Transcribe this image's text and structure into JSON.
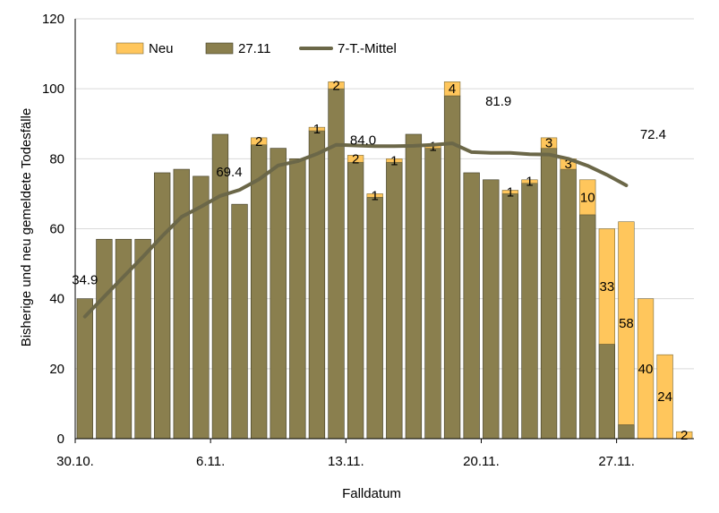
{
  "chart_data": {
    "type": "bar",
    "stacked": true,
    "xlabel": "Falldatum",
    "ylabel": "Bisherige und neu gemeldete Todesfälle",
    "ylim": [
      0,
      120
    ],
    "yticks": [
      0,
      20,
      40,
      60,
      80,
      100,
      120
    ],
    "grid": true,
    "legend": {
      "placement": "top-left",
      "entries": [
        "Neu",
        "27.11",
        "7-T.-Mittel"
      ]
    },
    "x_tick_labels": [
      {
        "label": "30.10.",
        "index": 0
      },
      {
        "label": "6.11.",
        "index": 7
      },
      {
        "label": "13.11.",
        "index": 14
      },
      {
        "label": "20.11.",
        "index": 21
      },
      {
        "label": "27.11.",
        "index": 28
      }
    ],
    "categories": [
      "30.10.",
      "31.10.",
      "1.11.",
      "2.11.",
      "3.11.",
      "4.11.",
      "5.11.",
      "6.11.",
      "7.11.",
      "8.11.",
      "9.11.",
      "10.11.",
      "11.11.",
      "12.11.",
      "13.11.",
      "14.11.",
      "15.11.",
      "16.11.",
      "17.11.",
      "18.11.",
      "19.11.",
      "20.11.",
      "21.11.",
      "22.11.",
      "23.11.",
      "24.11.",
      "25.11.",
      "26.11.",
      "27.11.",
      "28.11.",
      "29.11.",
      "30.11."
    ],
    "series": [
      {
        "name": "27.11",
        "kind": "bar",
        "color": "#8a7f4e",
        "values": [
          40,
          57,
          57,
          57,
          76,
          77,
          75,
          87,
          67,
          84,
          83,
          80,
          88,
          100,
          79,
          69,
          79,
          87,
          83,
          98,
          76,
          74,
          70,
          73,
          83,
          77,
          64,
          27,
          4,
          0,
          0,
          0
        ]
      },
      {
        "name": "Neu",
        "kind": "bar",
        "color": "#ffc65c",
        "values": [
          0,
          0,
          0,
          0,
          0,
          0,
          0,
          0,
          0,
          2,
          0,
          0,
          1,
          2,
          2,
          1,
          1,
          0,
          1,
          4,
          0,
          0,
          1,
          1,
          3,
          3,
          10,
          33,
          58,
          40,
          24,
          2
        ],
        "labels": [
          "",
          "",
          "",
          "",
          "",
          "",
          "",
          "",
          "",
          "2",
          "",
          "",
          "1",
          "2",
          "2",
          "1",
          "1",
          "",
          "1",
          "4",
          "",
          "",
          "1",
          "1",
          "3",
          "3",
          "10",
          "33",
          "58",
          "40",
          "24",
          "2"
        ]
      },
      {
        "name": "7-T.-Mittel",
        "kind": "line",
        "color": "#6b6748",
        "values": [
          34.9,
          40.6,
          46.3,
          52,
          57.9,
          63.4,
          66.3,
          69.4,
          71.1,
          74.1,
          78.1,
          79.3,
          81.4,
          84.0,
          83.8,
          83.6,
          83.6,
          83.7,
          84.0,
          84.4,
          81.9,
          81.7,
          81.7,
          81.3,
          81.2,
          80.0,
          78.0,
          75.4,
          72.4,
          null,
          null,
          null
        ]
      }
    ],
    "annotations": [
      {
        "text": "34.9",
        "x_index": 0,
        "y": 34.9
      },
      {
        "text": "69.4",
        "x_index": 7,
        "y": 69.4
      },
      {
        "text": "84.0",
        "x_index": 13,
        "y": 84.0
      },
      {
        "text": "81.9",
        "x_index": 20,
        "y": 81.9
      },
      {
        "text": "72.4",
        "x_index": 28,
        "y": 72.4
      }
    ]
  }
}
